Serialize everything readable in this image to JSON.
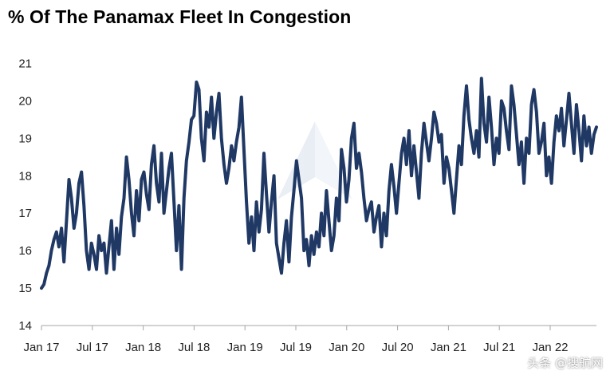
{
  "title": "% Of The Panamax Fleet In Congestion",
  "watermark": "头条 @搜航网",
  "chart_data": {
    "type": "line",
    "title": "% Of The Panamax Fleet In Congestion",
    "xlabel": "",
    "ylabel": "",
    "ylim": [
      14,
      21.5
    ],
    "yticks": [
      14,
      15,
      16,
      17,
      18,
      19,
      20,
      21
    ],
    "xticks": [
      "Jan 17",
      "Jul 17",
      "Jan 18",
      "Jul 18",
      "Jan 19",
      "Jul 19",
      "Jan 20",
      "Jul 20",
      "Jan 21",
      "Jul 21",
      "Jan 22"
    ],
    "grid": false,
    "legend": "none",
    "line_color": "#1f3864",
    "series": [
      {
        "values": [
          15.0,
          15.1,
          15.4,
          15.6,
          16.0,
          16.3,
          16.5,
          16.1,
          16.6,
          15.7,
          16.8,
          17.9,
          17.4,
          16.6,
          17.0,
          17.8,
          18.1,
          17.2,
          16.0,
          15.5,
          16.2,
          15.9,
          15.5,
          16.4,
          16.0,
          16.2,
          15.4,
          16.1,
          16.8,
          15.5,
          16.6,
          15.9,
          16.9,
          17.4,
          18.5,
          17.9,
          17.0,
          16.4,
          17.6,
          16.8,
          17.9,
          18.1,
          17.5,
          17.1,
          18.3,
          18.8,
          17.8,
          17.3,
          18.6,
          17.0,
          17.6,
          18.2,
          18.6,
          17.3,
          16.0,
          17.2,
          15.5,
          17.4,
          18.4,
          18.9,
          19.5,
          19.6,
          20.5,
          20.3,
          19.0,
          18.4,
          19.7,
          19.3,
          20.1,
          19.0,
          19.7,
          20.2,
          19.0,
          18.3,
          17.8,
          18.2,
          18.8,
          18.4,
          18.9,
          19.3,
          20.1,
          18.7,
          17.3,
          16.2,
          16.9,
          16.0,
          17.3,
          16.5,
          17.1,
          18.6,
          17.5,
          16.5,
          17.3,
          18.0,
          16.2,
          15.8,
          15.4,
          16.2,
          16.8,
          15.7,
          16.9,
          17.6,
          18.4,
          17.9,
          17.4,
          16.0,
          16.3,
          15.6,
          16.4,
          15.9,
          16.5,
          16.1,
          17.0,
          16.4,
          17.6,
          16.8,
          16.0,
          16.4,
          17.4,
          16.8,
          18.7,
          18.2,
          17.3,
          17.9,
          19.0,
          19.4,
          18.2,
          18.6,
          18.1,
          17.4,
          16.8,
          17.1,
          17.3,
          16.5,
          16.9,
          17.2,
          16.1,
          17.0,
          16.4,
          17.6,
          18.3,
          17.7,
          17.0,
          17.8,
          18.6,
          19.0,
          18.3,
          19.2,
          18.0,
          18.8,
          18.1,
          17.4,
          18.6,
          19.4,
          18.9,
          18.4,
          19.0,
          19.7,
          19.4,
          18.9,
          19.1,
          17.8,
          18.5,
          18.2,
          17.6,
          17.0,
          17.9,
          18.8,
          18.3,
          19.6,
          20.4,
          19.5,
          19.0,
          18.6,
          19.2,
          18.5,
          20.6,
          19.4,
          18.9,
          20.1,
          19.3,
          18.3,
          19.0,
          18.6,
          20.0,
          19.8,
          19.2,
          18.7,
          20.4,
          19.9,
          19.1,
          18.3,
          18.9,
          17.8,
          19.0,
          18.6,
          19.9,
          20.3,
          19.7,
          18.6,
          18.9,
          19.4,
          18.0,
          18.5,
          17.8,
          18.9,
          19.6,
          19.2,
          19.8,
          18.8,
          19.5,
          20.2,
          19.4,
          18.6,
          19.9,
          19.2,
          18.4,
          19.6,
          18.8,
          19.3,
          18.6,
          19.1,
          19.3
        ]
      }
    ],
    "x_start_date": "2017-01",
    "x_end_date": "2022-07"
  }
}
